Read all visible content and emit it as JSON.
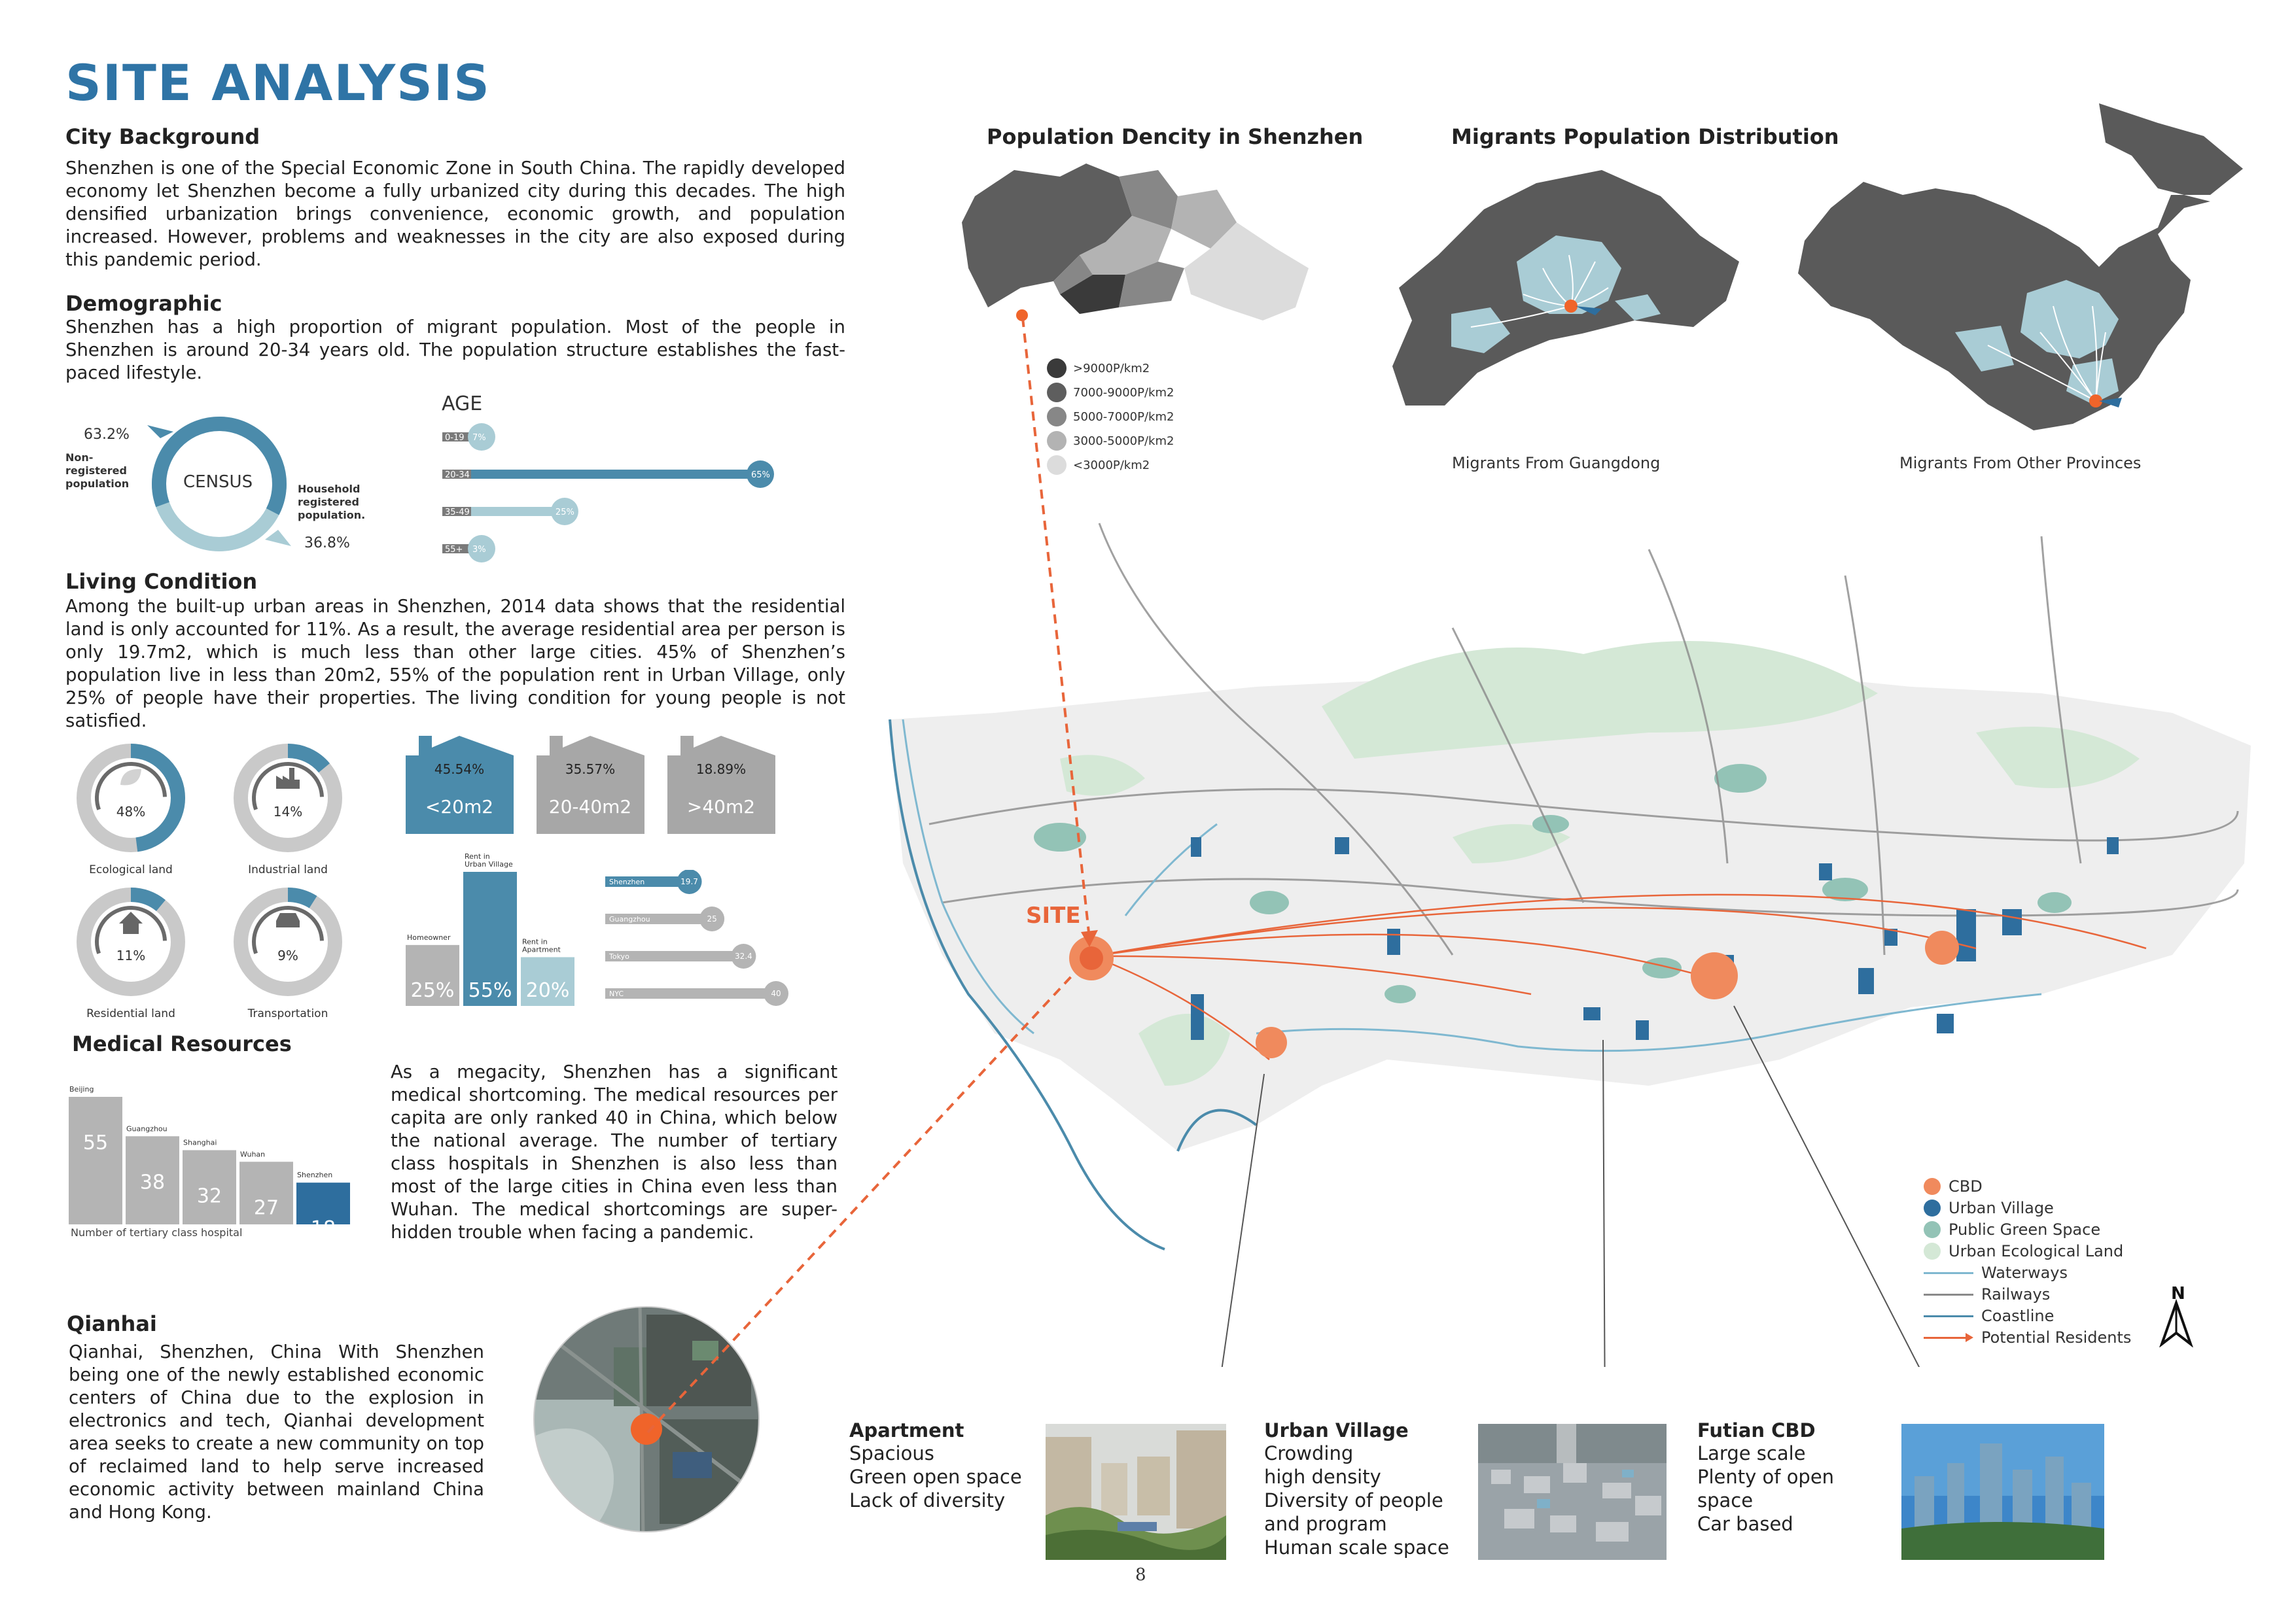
{
  "page": {
    "title": "SITE ANALYSIS",
    "page_number": "8"
  },
  "city_background": {
    "heading": "City Background",
    "text": "Shenzhen is one of the Special Economic Zone in South China. The rapidly developed economy let Shenzhen become a fully urbanized city during this decades. The high densified urbanization brings convenience, economic growth, and population increased. However, problems and weaknesses in the city are also exposed during this pandemic period."
  },
  "demographic": {
    "heading": "Demographic",
    "text": "Shenzhen has a high proportion of migrant population. Most of the people in Shenzhen is around 20-34 years old. The population structure establishes the fast-paced lifestyle."
  },
  "census": {
    "center_label": "CENSUS",
    "non_registered_pct": "63.2%",
    "non_registered_label": "Non-registered population",
    "registered_pct": "36.8%",
    "registered_label": "Household registered population."
  },
  "age": {
    "title": "AGE",
    "bars": [
      {
        "label": "0-19",
        "pct": "7%",
        "value": 7,
        "color": "#a9ccd5"
      },
      {
        "label": "20-34",
        "pct": "65%",
        "value": 65,
        "color": "#4b8bab"
      },
      {
        "label": "35-49",
        "pct": "25%",
        "value": 25,
        "color": "#a9ccd5"
      },
      {
        "label": "55+",
        "pct": "3%",
        "value": 3,
        "color": "#a9ccd5"
      }
    ]
  },
  "living": {
    "heading": "Living Condition",
    "text": "Among the built-up urban areas in Shenzhen, 2014 data shows that the residential land is only accounted for 11%. As a result, the average residential area per person is only 19.7m2, which is much less than other large cities. 45% of Shenzhen’s population live in less than 20m2, 55% of the population rent in Urban Village, only 25% of people have their properties. The living condition for young people is not satisfied."
  },
  "land_use": [
    {
      "pct": "48%",
      "value": 48,
      "label": "Ecological land",
      "icon": "leaf-icon"
    },
    {
      "pct": "14%",
      "value": 14,
      "label": "Industrial land",
      "icon": "factory-icon"
    },
    {
      "pct": "11%",
      "value": 11,
      "label": "Residential land",
      "icon": "house-icon"
    },
    {
      "pct": "9%",
      "value": 9,
      "label": "Transportation",
      "icon": "car-icon"
    }
  ],
  "living_area": [
    {
      "pct": "45.54%",
      "label": "<20m2",
      "color": "#4b8bab"
    },
    {
      "pct": "35.57%",
      "label": "20-40m2",
      "color": "#a7a7a7"
    },
    {
      "pct": "18.89%",
      "label": ">40m2",
      "color": "#a7a7a7"
    }
  ],
  "tenure": [
    {
      "top_label": "Homeowner",
      "pct": "25%",
      "value": 25,
      "color": "#b4b4b4"
    },
    {
      "top_label": "Rent in Urban Village",
      "pct": "55%",
      "value": 55,
      "color": "#4b8bab"
    },
    {
      "top_label": "Rent in Apartment",
      "pct": "20%",
      "value": 20,
      "color": "#a9ccd5"
    }
  ],
  "area_per_person": [
    {
      "city": "Shenzhen",
      "value": 19.7,
      "label": "19.7",
      "color": "#4b8bab"
    },
    {
      "city": "Guangzhou",
      "value": 25,
      "label": "25",
      "color": "#b4b4b4"
    },
    {
      "city": "Tokyo",
      "value": 32.4,
      "label": "32.4",
      "color": "#b4b4b4"
    },
    {
      "city": "NYC",
      "value": 40,
      "label": "40",
      "color": "#b4b4b4"
    }
  ],
  "medical": {
    "heading": "Medical Resources",
    "axis_label": "Number of tertiary class hospital",
    "bars": [
      {
        "city": "Beijing",
        "value": 55,
        "label": "55",
        "color": "#b4b4b4"
      },
      {
        "city": "Guangzhou",
        "value": 38,
        "label": "38",
        "color": "#b4b4b4"
      },
      {
        "city": "Shanghai",
        "value": 32,
        "label": "32",
        "color": "#b4b4b4"
      },
      {
        "city": "Wuhan",
        "value": 27,
        "label": "27",
        "color": "#b4b4b4"
      },
      {
        "city": "Shenzhen",
        "value": 18,
        "label": "18",
        "color": "#2e6e9e"
      }
    ],
    "text": "As a megacity, Shenzhen has a significant medical shortcoming. The medical resources per capita are only ranked 40 in China, which below the national average. The number of tertiary class hospitals in Shenzhen is also less than most of the large cities in China even less than Wuhan. The medical shortcomings are super-hidden trouble when facing a pandemic."
  },
  "qianhai": {
    "heading": "Qianhai",
    "text": "Qianhai, Shenzhen, China With Shenzhen being one of the newly established economic centers of China due to the explosion in electronics and tech, Qianhai development area seeks to create a new community on top of reclaimed land to help serve increased economic activity between mainland China and Hong Kong."
  },
  "density_map": {
    "title": "Population Dencity in Shenzhen",
    "legend": [
      {
        "label": ">9000P/km2",
        "color": "#3a3a3a"
      },
      {
        "label": "7000-9000P/km2",
        "color": "#5e5e5e"
      },
      {
        "label": "5000-7000P/km2",
        "color": "#878787"
      },
      {
        "label": "3000-5000P/km2",
        "color": "#b3b3b3"
      },
      {
        "label": "<3000P/km2",
        "color": "#dcdcdc"
      }
    ]
  },
  "migrants": {
    "title": "Migrants Population Distribution",
    "left_caption": "Migrants From Guangdong",
    "right_caption": "Migrants From Other Provinces"
  },
  "main_map": {
    "site_label": "SITE",
    "legend": [
      {
        "label": "CBD",
        "kind": "dot",
        "color": "#f08a5d"
      },
      {
        "label": "Urban Village",
        "kind": "dot",
        "color": "#2e6e9e"
      },
      {
        "label": "Public Green Space",
        "kind": "dot",
        "color": "#93c3b6"
      },
      {
        "label": "Urban Ecological Land",
        "kind": "dot",
        "color": "#d4e8d6"
      },
      {
        "label": "Waterways",
        "kind": "line",
        "color": "#7fb8d0"
      },
      {
        "label": "Railways",
        "kind": "line",
        "color": "#8a8a8a"
      },
      {
        "label": "Coastline",
        "kind": "line",
        "color": "#4b8bab"
      },
      {
        "label": "Potential Residents",
        "kind": "arrow",
        "color": "#e8653a"
      }
    ],
    "north": "N"
  },
  "photos": [
    {
      "title": "Apartment",
      "lines": [
        "Spacious",
        "Green open space",
        "Lack of diversity"
      ]
    },
    {
      "title": "Urban Village",
      "lines": [
        "Crowding",
        "high density",
        "Diversity of people",
        "and program",
        "Human scale space"
      ]
    },
    {
      "title": "Futian CBD",
      "lines": [
        "Large scale",
        "Plenty of open space",
        "Car based"
      ]
    }
  ]
}
